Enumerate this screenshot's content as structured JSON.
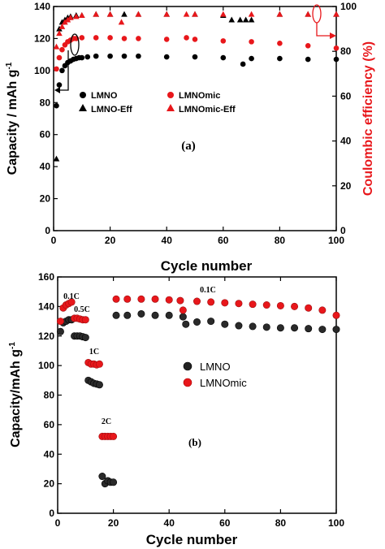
{
  "chart_data": [
    {
      "type": "scatter",
      "panel_label": "(a)",
      "xlabel": "Cycle number",
      "ylabel": "Capacity / mAh g",
      "ylabel_sup": "-1",
      "y2label": "Coulombic efficiency (%)",
      "xlim": [
        0,
        100
      ],
      "ylim": [
        0,
        140
      ],
      "y2lim": [
        0,
        100
      ],
      "x_ticks": [
        0,
        20,
        40,
        60,
        80,
        100
      ],
      "y_ticks": [
        0,
        20,
        40,
        60,
        80,
        100,
        120,
        140
      ],
      "y2_ticks": [
        0,
        20,
        40,
        60,
        80,
        100
      ],
      "legend_placement": "center-left",
      "colors": {
        "black": "#000000",
        "red": "#e8171b"
      },
      "series": [
        {
          "name": "LMNO",
          "marker": "circle",
          "color": "#000000",
          "axis": "left",
          "points": [
            [
              1,
              78
            ],
            [
              2,
              91
            ],
            [
              3,
              100
            ],
            [
              4,
              103
            ],
            [
              5,
              105
            ],
            [
              6,
              106
            ],
            [
              7,
              107
            ],
            [
              8,
              107.5
            ],
            [
              9,
              108
            ],
            [
              10,
              108
            ],
            [
              12,
              108.5
            ],
            [
              15,
              109
            ],
            [
              20,
              109
            ],
            [
              25,
              109
            ],
            [
              30,
              109
            ],
            [
              40,
              108.5
            ],
            [
              50,
              108.5
            ],
            [
              60,
              108
            ],
            [
              67,
              104
            ],
            [
              70,
              107.5
            ],
            [
              80,
              107.5
            ],
            [
              90,
              107
            ],
            [
              100,
              107
            ]
          ]
        },
        {
          "name": "LMNOmic",
          "marker": "circle",
          "color": "#e8171b",
          "axis": "left",
          "points": [
            [
              1,
              101
            ],
            [
              2,
              108
            ],
            [
              3,
              113
            ],
            [
              4,
              116
            ],
            [
              5,
              118
            ],
            [
              6,
              119
            ],
            [
              7,
              120
            ],
            [
              8,
              120
            ],
            [
              10,
              120.5
            ],
            [
              15,
              120.5
            ],
            [
              20,
              120.5
            ],
            [
              25,
              120
            ],
            [
              30,
              120
            ],
            [
              40,
              119.5
            ],
            [
              47,
              120.5
            ],
            [
              50,
              119.5
            ],
            [
              60,
              118.5
            ],
            [
              70,
              118
            ],
            [
              80,
              117
            ],
            [
              90,
              115.5
            ],
            [
              100,
              114
            ]
          ]
        },
        {
          "name": "LMNO-Eff",
          "marker": "triangle",
          "color": "#000000",
          "axis": "right",
          "points": [
            [
              1,
              32
            ],
            [
              2,
              90
            ],
            [
              3,
              93
            ],
            [
              4,
              94
            ],
            [
              5,
              95
            ],
            [
              6,
              95.5
            ],
            [
              8,
              96
            ],
            [
              10,
              96
            ],
            [
              15,
              96.5
            ],
            [
              20,
              96.5
            ],
            [
              25,
              96.5
            ],
            [
              30,
              96.5
            ],
            [
              40,
              96.5
            ],
            [
              50,
              96.5
            ],
            [
              60,
              96
            ],
            [
              63,
              94
            ],
            [
              66,
              94
            ],
            [
              68,
              94
            ],
            [
              70,
              94
            ],
            [
              80,
              96.5
            ],
            [
              90,
              96.5
            ],
            [
              100,
              96.5
            ]
          ]
        },
        {
          "name": "LMNOmic-Eff",
          "marker": "triangle",
          "color": "#e8171b",
          "axis": "right",
          "points": [
            [
              1,
              82
            ],
            [
              2,
              88
            ],
            [
              3,
              91
            ],
            [
              4,
              93
            ],
            [
              5,
              94
            ],
            [
              6,
              95
            ],
            [
              8,
              95.5
            ],
            [
              10,
              96
            ],
            [
              15,
              96.5
            ],
            [
              20,
              96.5
            ],
            [
              24,
              93
            ],
            [
              30,
              96.5
            ],
            [
              40,
              96.5
            ],
            [
              47,
              96.5
            ],
            [
              50,
              96.5
            ],
            [
              60,
              96.5
            ],
            [
              70,
              96.5
            ],
            [
              80,
              96.5
            ],
            [
              90,
              96.5
            ],
            [
              100,
              96.5
            ]
          ]
        }
      ]
    },
    {
      "type": "scatter",
      "panel_label": "(b)",
      "xlabel": "Cycle number",
      "ylabel": "Capacity/mAh g",
      "ylabel_sup": "-1",
      "xlim": [
        0,
        100
      ],
      "ylim": [
        0,
        160
      ],
      "x_ticks": [
        0,
        20,
        40,
        60,
        80,
        100
      ],
      "y_ticks": [
        0,
        20,
        40,
        60,
        80,
        100,
        120,
        140,
        160
      ],
      "legend_placement": "center-right",
      "annotations": [
        "0.1C",
        "0.5C",
        "1C",
        "2C",
        "0.1C"
      ],
      "series": [
        {
          "name": "LMNO",
          "marker": "circle",
          "color": "#000000",
          "points": [
            [
              1,
              123
            ],
            [
              2,
              129
            ],
            [
              3,
              130
            ],
            [
              4,
              131
            ],
            [
              5,
              131
            ],
            [
              6,
              120
            ],
            [
              7,
              120
            ],
            [
              8,
              120
            ],
            [
              9,
              119.5
            ],
            [
              10,
              119
            ],
            [
              11,
              90
            ],
            [
              12,
              89
            ],
            [
              13,
              88
            ],
            [
              14,
              87.5
            ],
            [
              15,
              87
            ],
            [
              16,
              25
            ],
            [
              17,
              20
            ],
            [
              18,
              22
            ],
            [
              19,
              21
            ],
            [
              20,
              21
            ],
            [
              21,
              134
            ],
            [
              25,
              134
            ],
            [
              30,
              135
            ],
            [
              35,
              134
            ],
            [
              40,
              134
            ],
            [
              45,
              133
            ],
            [
              46,
              128
            ],
            [
              50,
              129.5
            ],
            [
              55,
              130
            ],
            [
              60,
              128
            ],
            [
              65,
              127
            ],
            [
              70,
              126.5
            ],
            [
              75,
              126
            ],
            [
              80,
              125.5
            ],
            [
              85,
              125.5
            ],
            [
              90,
              125
            ],
            [
              95,
              124.5
            ],
            [
              100,
              124.5
            ]
          ]
        },
        {
          "name": "LMNOmic",
          "marker": "circle",
          "color": "#e8171b",
          "points": [
            [
              1,
              130
            ],
            [
              2,
              139
            ],
            [
              3,
              141
            ],
            [
              4,
              142
            ],
            [
              5,
              143
            ],
            [
              6,
              132
            ],
            [
              7,
              132
            ],
            [
              8,
              131.5
            ],
            [
              9,
              131
            ],
            [
              10,
              131
            ],
            [
              11,
              102
            ],
            [
              12,
              101
            ],
            [
              13,
              101
            ],
            [
              14,
              100.5
            ],
            [
              15,
              101
            ],
            [
              16,
              52
            ],
            [
              17,
              52
            ],
            [
              18,
              52
            ],
            [
              19,
              52
            ],
            [
              20,
              52
            ],
            [
              21,
              145
            ],
            [
              25,
              145
            ],
            [
              30,
              145
            ],
            [
              35,
              145
            ],
            [
              40,
              144.5
            ],
            [
              44,
              144
            ],
            [
              45,
              137.5
            ],
            [
              50,
              143.5
            ],
            [
              55,
              143
            ],
            [
              60,
              142.5
            ],
            [
              65,
              142
            ],
            [
              70,
              141.5
            ],
            [
              75,
              141
            ],
            [
              80,
              140.5
            ],
            [
              85,
              140
            ],
            [
              90,
              139
            ],
            [
              95,
              137.5
            ],
            [
              100,
              134
            ]
          ]
        }
      ]
    }
  ]
}
